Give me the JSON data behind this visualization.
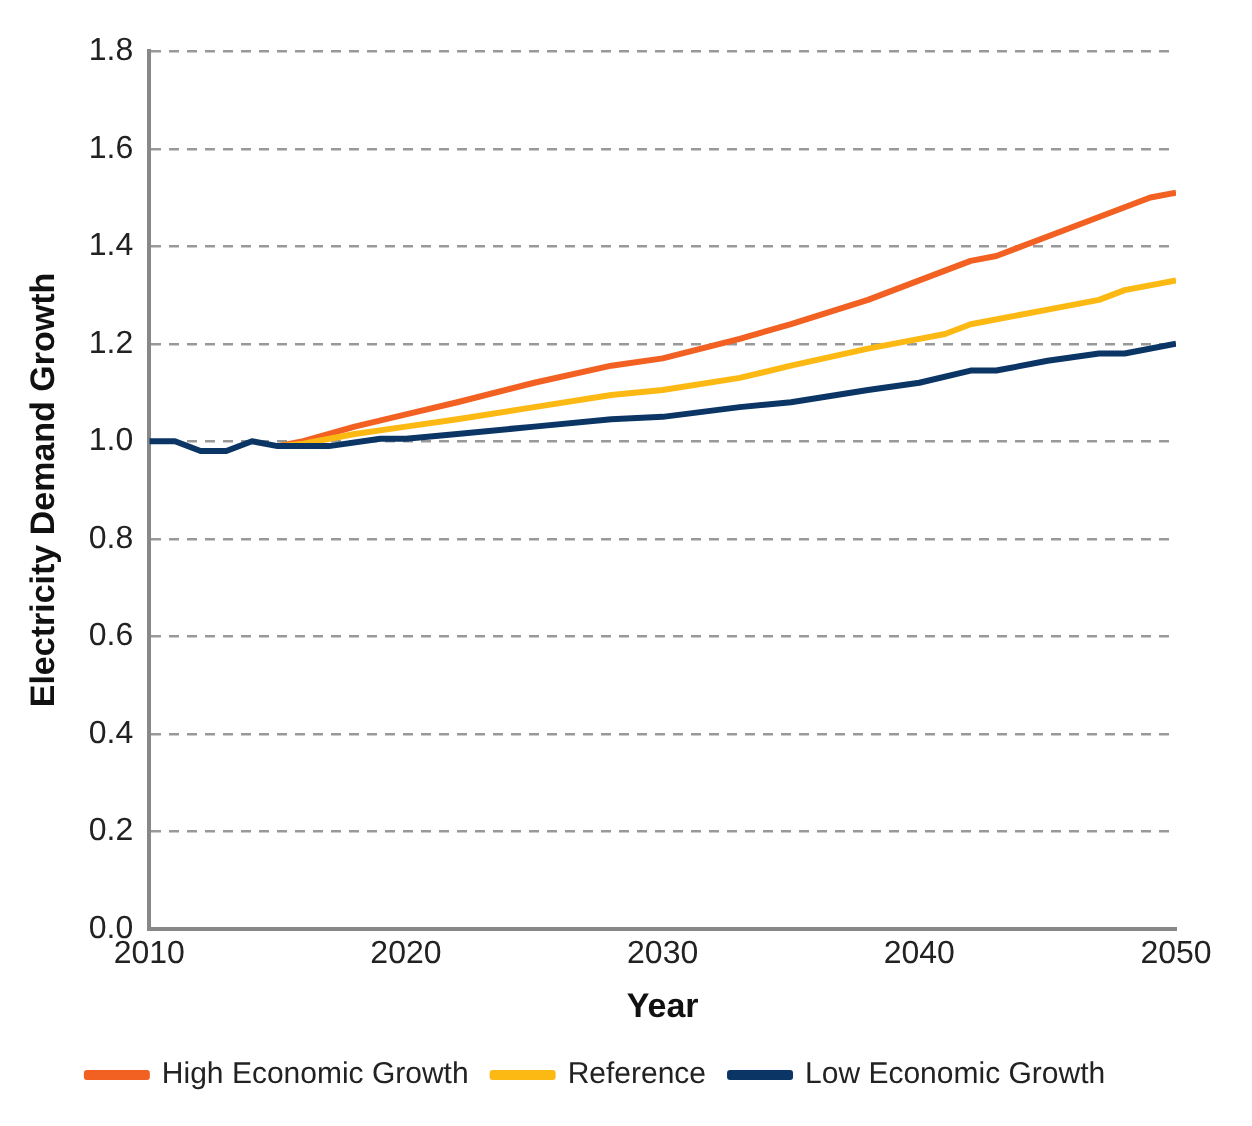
{
  "chart_data": {
    "type": "line",
    "xlabel": "Year",
    "ylabel": "Electricity Demand Growth",
    "xlim": [
      2010,
      2050
    ],
    "xticks": [
      2010,
      2020,
      2030,
      2040,
      2050
    ],
    "ylim": [
      0,
      1.8
    ],
    "yticks": [
      {
        "value": 0,
        "label": "0.0"
      },
      0.2,
      0.4,
      0.6,
      0.8,
      {
        "value": 1,
        "label": "1.0"
      },
      1.2,
      1.4,
      1.6,
      1.8
    ],
    "grid": "y",
    "legend": "bottom",
    "line_style": "solid",
    "marker": "none",
    "series": [
      {
        "name": "High Economic Growth",
        "color": "#f26122",
        "x": [
          2015,
          2016,
          2018,
          2020,
          2022,
          2025,
          2028,
          2030,
          2033,
          2035,
          2038,
          2040,
          2042,
          2043,
          2045,
          2047,
          2049,
          2050
        ],
        "values": [
          0.99,
          1.0,
          1.03,
          1.055,
          1.08,
          1.12,
          1.155,
          1.17,
          1.21,
          1.24,
          1.29,
          1.33,
          1.37,
          1.38,
          1.42,
          1.46,
          1.5,
          1.51
        ]
      },
      {
        "name": "Reference",
        "color": "#fdb913",
        "x": [
          2015,
          2016,
          2018,
          2020,
          2022,
          2025,
          2028,
          2030,
          2033,
          2035,
          2038,
          2040,
          2041,
          2042,
          2045,
          2047,
          2048,
          2050
        ],
        "values": [
          0.99,
          0.995,
          1.015,
          1.03,
          1.045,
          1.07,
          1.095,
          1.105,
          1.13,
          1.155,
          1.19,
          1.21,
          1.22,
          1.24,
          1.27,
          1.29,
          1.31,
          1.33
        ]
      },
      {
        "name": "Low Economic Growth",
        "color": "#0b3565",
        "x": [
          2010,
          2011,
          2012,
          2013,
          2014,
          2015,
          2016,
          2017,
          2019,
          2020,
          2022,
          2025,
          2028,
          2030,
          2033,
          2035,
          2038,
          2040,
          2042,
          2043,
          2045,
          2047,
          2048,
          2050
        ],
        "values": [
          1.0,
          1.0,
          0.98,
          0.98,
          1.0,
          0.99,
          0.99,
          0.99,
          1.005,
          1.005,
          1.015,
          1.03,
          1.045,
          1.05,
          1.07,
          1.08,
          1.105,
          1.12,
          1.145,
          1.145,
          1.165,
          1.18,
          1.18,
          1.2
        ]
      }
    ]
  }
}
